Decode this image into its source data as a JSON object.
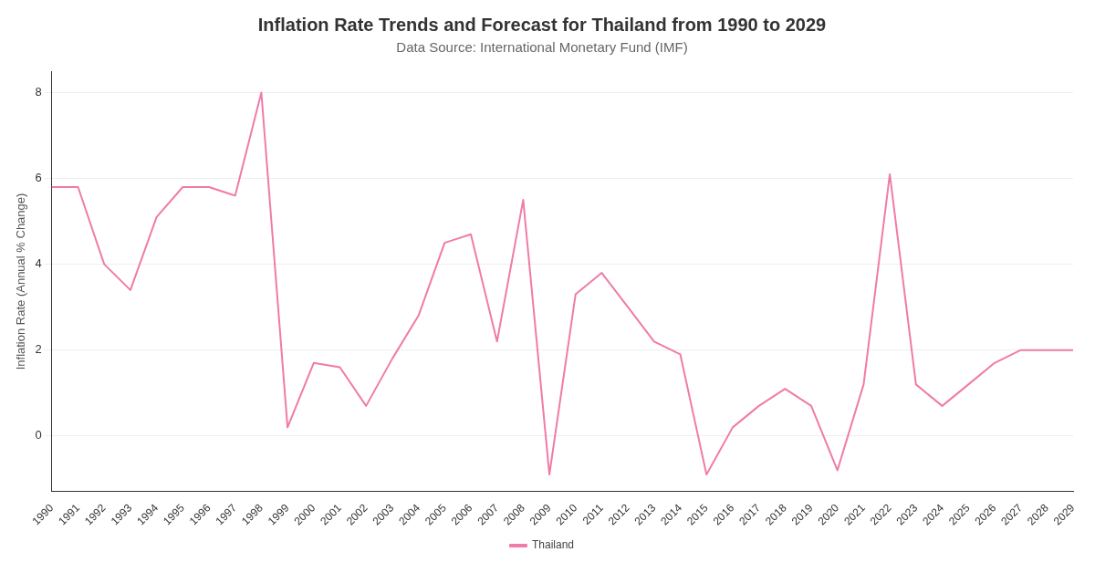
{
  "chart_data": {
    "type": "line",
    "title": "Inflation Rate Trends and Forecast for Thailand from 1990 to 2029",
    "subtitle": "Data Source: International Monetary Fund (IMF)",
    "ylabel": "Inflation Rate (Annual % Change)",
    "categories": [
      "1990",
      "1991",
      "1992",
      "1993",
      "1994",
      "1995",
      "1996",
      "1997",
      "1998",
      "1999",
      "2000",
      "2001",
      "2002",
      "2003",
      "2004",
      "2005",
      "2006",
      "2007",
      "2008",
      "2009",
      "2010",
      "2011",
      "2012",
      "2013",
      "2014",
      "2015",
      "2016",
      "2017",
      "2018",
      "2019",
      "2020",
      "2021",
      "2022",
      "2023",
      "2024",
      "2025",
      "2026",
      "2027",
      "2028",
      "2029"
    ],
    "series": [
      {
        "name": "Thailand",
        "color": "#f07ba8",
        "values": [
          5.8,
          5.8,
          4.0,
          3.4,
          5.1,
          5.8,
          5.8,
          5.6,
          8.0,
          0.2,
          1.7,
          1.6,
          0.7,
          1.8,
          2.8,
          4.5,
          4.7,
          2.2,
          5.5,
          -0.9,
          3.3,
          3.8,
          3.0,
          2.2,
          1.9,
          -0.9,
          0.2,
          0.7,
          1.1,
          0.7,
          -0.8,
          1.2,
          6.1,
          1.2,
          0.7,
          1.2,
          1.7,
          2.0,
          2.0,
          2.0
        ]
      }
    ],
    "ylim": [
      -1.3,
      8.5
    ],
    "yticks": [
      0,
      2,
      4,
      6,
      8
    ],
    "grid": "y",
    "legend": "bottom",
    "marker": "none",
    "line_style": "solid"
  }
}
